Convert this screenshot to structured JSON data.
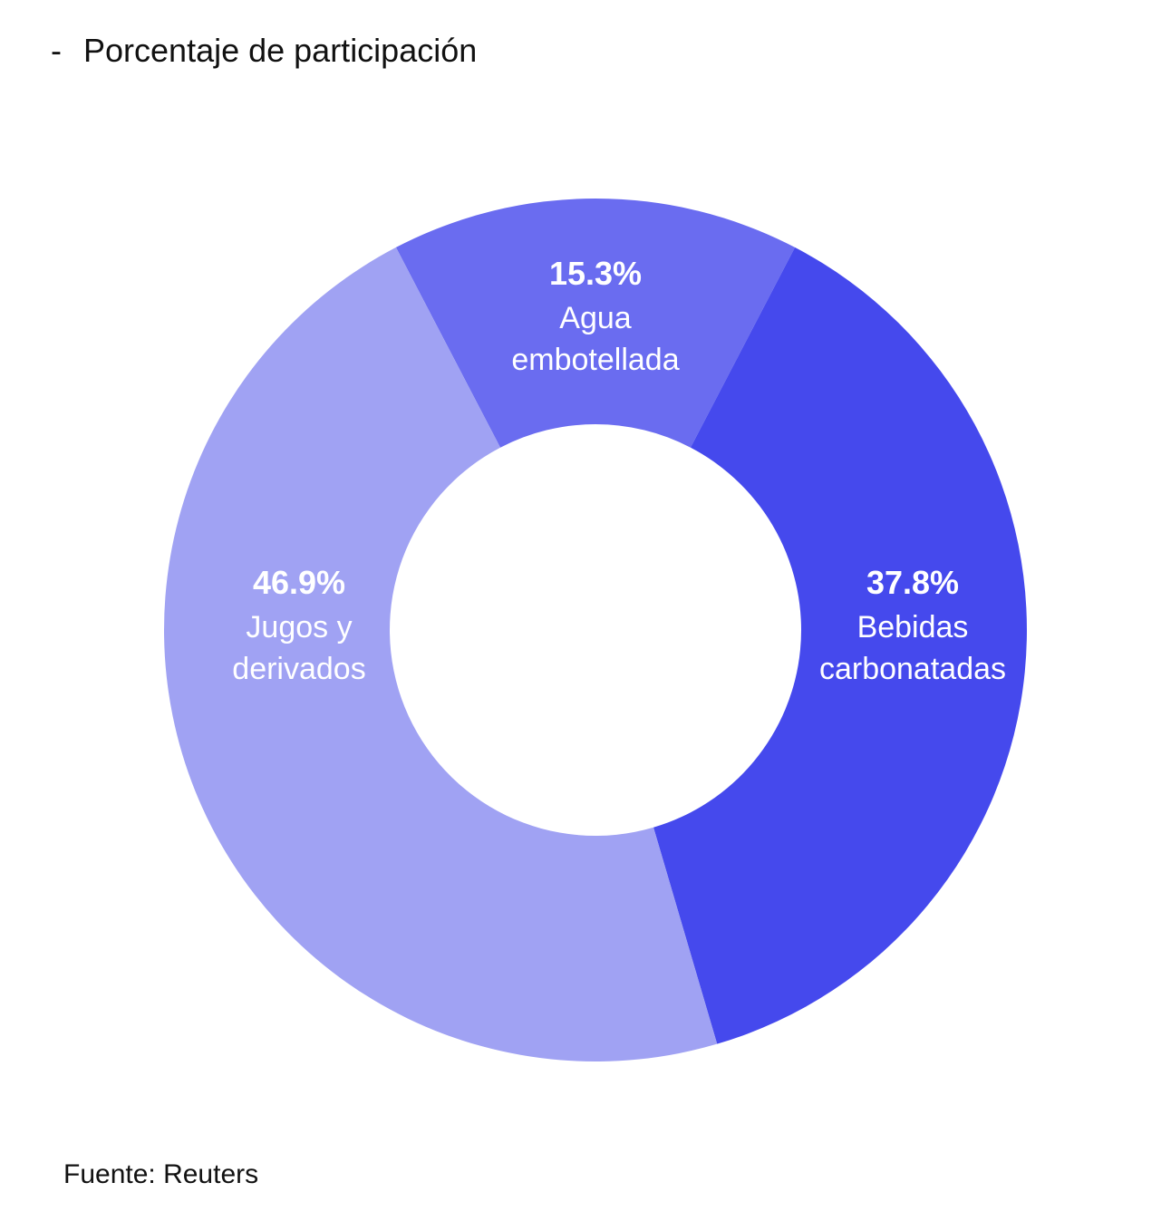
{
  "title": "Porcentaje de participación",
  "title_bullet": "-",
  "source": "Fuente: Reuters",
  "chart_data": {
    "type": "pie",
    "variant": "donut",
    "slices": [
      {
        "label_lines": [
          "Agua",
          "embotellada"
        ],
        "value": 15.3,
        "value_label": "15.3%",
        "color": "#6a6cf0"
      },
      {
        "label_lines": [
          "Bebidas",
          "carbonatadas"
        ],
        "value": 37.8,
        "value_label": "37.8%",
        "color": "#4549ed"
      },
      {
        "label_lines": [
          "Jugos y",
          "derivados"
        ],
        "value": 46.9,
        "value_label": "46.9%",
        "color": "#a0a2f3"
      }
    ],
    "start": "top-center, clockwise"
  }
}
